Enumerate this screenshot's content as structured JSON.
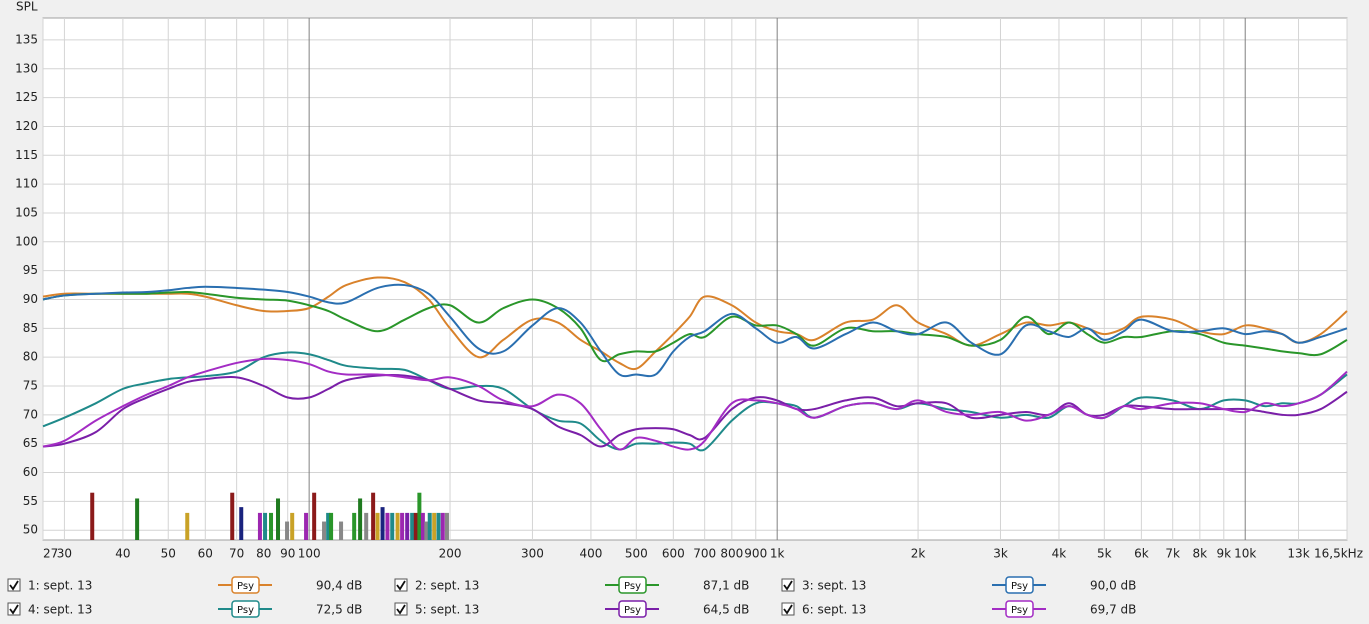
{
  "chart_data": {
    "type": "line",
    "y_label": "SPL",
    "log_x": true,
    "grid": true,
    "xlim": [
      27,
      16500
    ],
    "ylim": [
      48.3,
      138.8
    ],
    "yticks": [
      50,
      55,
      60,
      65,
      70,
      75,
      80,
      85,
      90,
      95,
      100,
      105,
      110,
      115,
      120,
      125,
      130,
      135
    ],
    "xticks": [
      27,
      30,
      40,
      50,
      60,
      70,
      80,
      90,
      100,
      200,
      300,
      400,
      500,
      600,
      700,
      800,
      900,
      {
        "value": 1000,
        "label": "1k"
      },
      {
        "value": 2000,
        "label": "2k"
      },
      {
        "value": 3000,
        "label": "3k"
      },
      {
        "value": 4000,
        "label": "4k"
      },
      {
        "value": 5000,
        "label": "5k"
      },
      {
        "value": 6000,
        "label": "6k"
      },
      {
        "value": 7000,
        "label": "7k"
      },
      {
        "value": 8000,
        "label": "8k"
      },
      {
        "value": 9000,
        "label": "9k"
      },
      {
        "value": 10000,
        "label": "10k"
      },
      {
        "value": 13000,
        "label": "13k"
      },
      {
        "value": 16500,
        "label": "16,5kHz"
      }
    ],
    "x": [
      27,
      30,
      35,
      40,
      45,
      50,
      55,
      60,
      70,
      80,
      90,
      100,
      110,
      120,
      140,
      160,
      180,
      200,
      230,
      260,
      300,
      340,
      380,
      420,
      460,
      500,
      550,
      600,
      650,
      700,
      800,
      900,
      1000,
      1100,
      1200,
      1400,
      1600,
      1800,
      2000,
      2300,
      2600,
      3000,
      3400,
      3800,
      4200,
      4600,
      5000,
      5500,
      6000,
      7000,
      8000,
      9000,
      10000,
      11000,
      12000,
      13000,
      14500,
      16500
    ],
    "series": [
      {
        "name": "1: sept. 13",
        "color": "#d9822b",
        "smoothing": "Psy",
        "level_label": "90,4 dB",
        "checked": true,
        "values": [
          90.5,
          91,
          91,
          91,
          91,
          91,
          91,
          90.5,
          89,
          88,
          88,
          88.5,
          90.5,
          92.5,
          93.8,
          93,
          90,
          85,
          80,
          83,
          86.5,
          86,
          83,
          81,
          79,
          78,
          81,
          84,
          87,
          90.5,
          89,
          86,
          84.5,
          84,
          83,
          86,
          86.5,
          89,
          86,
          84,
          82,
          84,
          86,
          85.5,
          86,
          85,
          84,
          85,
          87,
          86.5,
          84.5,
          84,
          85.5,
          85,
          84,
          82.5,
          84,
          88
        ]
      },
      {
        "name": "2: sept. 13",
        "color": "#2a962a",
        "smoothing": "Psy",
        "level_label": "87,1 dB",
        "checked": true,
        "values": [
          90,
          90.7,
          91,
          91,
          91,
          91.2,
          91.3,
          91,
          90.3,
          90,
          89.8,
          89,
          88,
          86.5,
          84.5,
          86.5,
          88.5,
          89,
          86,
          88.5,
          90,
          88.5,
          85,
          79.5,
          80.5,
          81,
          81,
          82.5,
          84,
          83.5,
          87,
          85.5,
          85.5,
          84,
          82,
          85,
          84.5,
          84.5,
          84,
          83.5,
          82,
          83,
          87,
          84,
          86,
          84,
          82.5,
          83.5,
          83.5,
          84.5,
          84,
          82.5,
          82,
          81.5,
          81,
          80.7,
          80.5,
          83
        ]
      },
      {
        "name": "3: sept. 13",
        "color": "#2a6fb0",
        "smoothing": "Psy",
        "level_label": "90,0 dB",
        "checked": true,
        "values": [
          90,
          90.7,
          91,
          91.2,
          91.3,
          91.6,
          92,
          92.2,
          92,
          91.7,
          91.3,
          90.5,
          89.5,
          89.5,
          92,
          92.5,
          91,
          87,
          81.5,
          81,
          85.5,
          88.5,
          86,
          81,
          77,
          77,
          77,
          81,
          83.5,
          84.5,
          87.5,
          85,
          82.5,
          83.5,
          81.5,
          84,
          86,
          84.5,
          84,
          86,
          82.5,
          80.5,
          85.5,
          84.5,
          83.5,
          85,
          83,
          84.5,
          86.5,
          84.5,
          84.5,
          85,
          84,
          84.5,
          84,
          82.5,
          83.5,
          85
        ]
      },
      {
        "name": "4: sept. 13",
        "color": "#1f8a8a",
        "smoothing": "Psy",
        "level_label": "72,5 dB",
        "checked": true,
        "values": [
          68,
          69.5,
          72,
          74.5,
          75.5,
          76.2,
          76.5,
          76.7,
          77.5,
          80,
          80.8,
          80.5,
          79.5,
          78.5,
          78,
          77.8,
          76,
          74.5,
          75,
          74.5,
          71,
          69,
          68.5,
          65.5,
          64,
          65,
          65,
          65.2,
          65,
          64,
          69,
          72,
          72,
          71.5,
          69.5,
          71.5,
          72,
          71,
          72,
          71,
          70.5,
          69.5,
          70,
          69.5,
          71.5,
          70,
          69.5,
          71.5,
          73,
          72.5,
          71,
          72.5,
          72.5,
          71.5,
          72,
          72,
          73.5,
          77
        ]
      },
      {
        "name": "5: sept. 13",
        "color": "#7a1fa8",
        "smoothing": "Psy",
        "level_label": "64,5 dB",
        "checked": true,
        "values": [
          64.5,
          65,
          67,
          71,
          73,
          74.5,
          75.7,
          76.2,
          76.5,
          75,
          73,
          73,
          74.5,
          76,
          76.8,
          76.8,
          76,
          74.5,
          72.5,
          72,
          71,
          68,
          66.5,
          64.5,
          66.5,
          67.5,
          67.7,
          67.5,
          66.5,
          66,
          71,
          73,
          72.5,
          71,
          71,
          72.5,
          73,
          71.5,
          72,
          72,
          69.5,
          70,
          70.5,
          70,
          72,
          70,
          70,
          71.5,
          71.5,
          71,
          71,
          71,
          71,
          70.5,
          70,
          70,
          71,
          74
        ]
      },
      {
        "name": "6: sept. 13",
        "color": "#a32cc4",
        "smoothing": "Psy",
        "level_label": "69,7 dB",
        "checked": true,
        "values": [
          64.5,
          65.5,
          69,
          71.5,
          73.5,
          75,
          76.5,
          77.5,
          79,
          79.7,
          79.5,
          78.8,
          77.5,
          77,
          77,
          76.5,
          76,
          76.5,
          75,
          72.5,
          71.5,
          73.5,
          72,
          67.5,
          64,
          66,
          65.5,
          64.5,
          64,
          65.5,
          72,
          72.5,
          72,
          71,
          69.5,
          71.5,
          72,
          71,
          72.5,
          70.5,
          70,
          70.5,
          69,
          70,
          71.5,
          70,
          69.5,
          71.5,
          71,
          72,
          72,
          71,
          70.5,
          72,
          71.5,
          72,
          73.5,
          77.5
        ]
      }
    ],
    "markers": {
      "x": [
        34.4,
        42.9,
        54.9,
        68.5,
        71.6,
        78.5,
        80.5,
        82.9,
        85.8,
        89.7,
        92,
        98.5,
        102.5,
        107.6,
        109.8,
        111.4,
        117,
        124.8,
        128.5,
        132.4,
        137,
        140,
        143.5,
        147,
        150.5,
        154.5,
        158,
        162,
        166,
        169,
        172,
        175,
        178,
        181,
        185,
        189,
        193,
        197
      ],
      "values": [
        56.5,
        55.5,
        53,
        56.5,
        54,
        53,
        53,
        53,
        55.5,
        51.5,
        53,
        53,
        56.5,
        51.5,
        53,
        53,
        51.5,
        53,
        55.5,
        53,
        56.5,
        53,
        54,
        53,
        53,
        53,
        53,
        53,
        53,
        53,
        56.5,
        53,
        51.5,
        53,
        53,
        53,
        53,
        53
      ],
      "colors": [
        "#8b1a1a",
        "#1f7a1f",
        "#c9a227",
        "#8b1a1a",
        "#1a237e",
        "#9c27b0",
        "#1f8a8a",
        "#2a962a",
        "#1f7a1f",
        "#888888",
        "#c9a227",
        "#9c27b0",
        "#8b1a1a",
        "#888888",
        "#1f8a8a",
        "#2a962a",
        "#888888",
        "#2a962a",
        "#1f7a1f",
        "#888888",
        "#8b1a1a",
        "#c9a227",
        "#1a237e",
        "#9c27b0",
        "#1f8a8a",
        "#c9a227",
        "#9c27b0",
        "#7a1fa8",
        "#1f8a8a",
        "#8b1a1a",
        "#2a962a",
        "#9c27b0",
        "#888888",
        "#1f8a8a",
        "#c9a227",
        "#1f8a8a",
        "#9c27b0",
        "#888888"
      ]
    }
  }
}
